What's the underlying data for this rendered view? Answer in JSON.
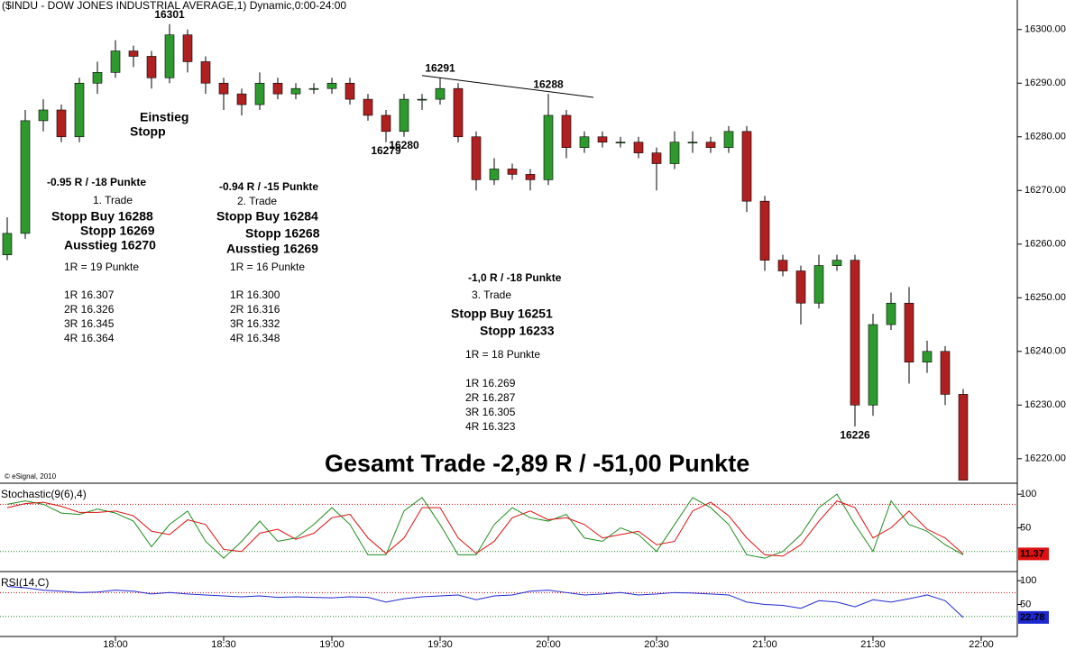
{
  "chart_data": [
    {
      "type": "candlestick",
      "title": "($INDU - DOW JONES INDUSTRIAL AVERAGE,1) Dynamic,0:00-24:00",
      "credit": "© eSignal, 2010",
      "x": [
        "17:30",
        "17:35",
        "17:40",
        "17:45",
        "17:50",
        "17:55",
        "18:00",
        "18:05",
        "18:10",
        "18:15",
        "18:20",
        "18:25",
        "18:30",
        "18:35",
        "18:40",
        "18:45",
        "18:50",
        "18:55",
        "19:00",
        "19:05",
        "19:10",
        "19:15",
        "19:20",
        "19:25",
        "19:30",
        "19:35",
        "19:40",
        "19:45",
        "19:50",
        "19:55",
        "20:00",
        "20:05",
        "20:10",
        "20:15",
        "20:20",
        "20:25",
        "20:30",
        "20:35",
        "20:40",
        "20:45",
        "20:50",
        "20:55",
        "21:00",
        "21:05",
        "21:10",
        "21:15",
        "21:20",
        "21:25",
        "21:30",
        "21:35",
        "21:40",
        "21:45",
        "21:50",
        "21:55"
      ],
      "open": [
        16258,
        16262,
        16283,
        16285,
        16280,
        16290,
        16292,
        16296,
        16295,
        16291,
        16299,
        16294,
        16290,
        16288,
        16286,
        16290,
        16288,
        16289,
        16289,
        16290,
        16287,
        16284,
        16281,
        16287,
        16287,
        16289,
        16280,
        16272,
        16274,
        16273,
        16272,
        16284,
        16278,
        16280,
        16279,
        16279,
        16277,
        16275,
        16279,
        16279,
        16278,
        16281,
        16268,
        16257,
        16255,
        16249,
        16256,
        16257,
        16230,
        16245,
        16249,
        16238,
        16240,
        16232
      ],
      "high": [
        16265,
        16285,
        16287,
        16286,
        16291,
        16294,
        16298,
        16297,
        16296,
        16301,
        16300,
        16295,
        16291,
        16289,
        16292,
        16291,
        16290,
        16290,
        16291,
        16291,
        16288,
        16285,
        16288,
        16288,
        16291,
        16290,
        16281,
        16276,
        16275,
        16274,
        16288,
        16285,
        16281,
        16281,
        16280,
        16280,
        16278,
        16281,
        16281,
        16280,
        16282,
        16282,
        16269,
        16258,
        16256,
        16258,
        16258,
        16258,
        16247,
        16251,
        16252,
        16242,
        16241,
        16233
      ],
      "low": [
        16257,
        16261,
        16281,
        16279,
        16279,
        16288,
        16291,
        16293,
        16289,
        16290,
        16292,
        16288,
        16285,
        16284,
        16285,
        16287,
        16287,
        16288,
        16288,
        16286,
        16283,
        16279,
        16280,
        16285,
        16286,
        16279,
        16270,
        16271,
        16272,
        16270,
        16271,
        16276,
        16277,
        16278,
        16278,
        16276,
        16270,
        16274,
        16277,
        16277,
        16277,
        16266,
        16255,
        16254,
        16245,
        16248,
        16255,
        16226,
        16228,
        16244,
        16234,
        16236,
        16230,
        16216
      ],
      "close": [
        16262,
        16283,
        16285,
        16280,
        16290,
        16292,
        16296,
        16295,
        16291,
        16299,
        16294,
        16290,
        16288,
        16286,
        16290,
        16288,
        16289,
        16289,
        16290,
        16287,
        16284,
        16281,
        16287,
        16287,
        16289,
        16280,
        16272,
        16274,
        16273,
        16272,
        16284,
        16278,
        16280,
        16279,
        16279,
        16277,
        16275,
        16279,
        16279,
        16278,
        16281,
        16268,
        16257,
        16255,
        16249,
        16256,
        16257,
        16230,
        16245,
        16249,
        16238,
        16240,
        16232,
        16216
      ],
      "up_color": "#2e9a2e",
      "down_color": "#b02020",
      "xlim": [
        "17:28",
        "22:10"
      ],
      "xticks": [
        "18:00",
        "18:30",
        "19:00",
        "19:30",
        "20:00",
        "20:30",
        "21:00",
        "21:30",
        "22:00"
      ],
      "ylim": [
        16215.6,
        16305.5
      ],
      "yticks": [
        {
          "value": 16220,
          "label": "16220.00"
        },
        {
          "value": 16230,
          "label": "16230.00"
        },
        {
          "value": 16240,
          "label": "16240.00"
        },
        {
          "value": 16250,
          "label": "16250.00"
        },
        {
          "value": 16260,
          "label": "16260.00"
        },
        {
          "value": 16270,
          "label": "16270.00"
        },
        {
          "value": 16280,
          "label": "16280.00"
        },
        {
          "value": 16290,
          "label": "16290.00"
        },
        {
          "value": 16300,
          "label": "16300.00"
        }
      ],
      "point_labels": [
        {
          "x": "18:15",
          "value": 16301,
          "position": "above",
          "color": "#000000"
        },
        {
          "x": "19:30",
          "value": 16291,
          "position": "above",
          "color": "#000000"
        },
        {
          "x": "20:00",
          "value": 16288,
          "position": "above",
          "color": "#000000"
        },
        {
          "x": "19:15",
          "value": 16279,
          "position": "below",
          "color": "#000000"
        },
        {
          "x": "19:20",
          "value": 16280,
          "position": "below",
          "color": "#000000"
        },
        {
          "x": "21:25",
          "value": 16226,
          "position": "below",
          "color": "#e6141e"
        }
      ],
      "trendline": [
        {
          "x": "19:30",
          "value": 16291
        },
        {
          "x": "20:05",
          "value": 16288
        }
      ],
      "annotations": [
        {
          "text": "Einstieg",
          "color": "#e6141e"
        },
        {
          "text": "Stopp",
          "color": "#e6141e"
        },
        {
          "text": "-0.95 R / -18 Punkte",
          "color": "#000000"
        },
        {
          "text": "1. Trade",
          "color": "#000000"
        },
        {
          "text": "Stopp Buy 16288",
          "color": "#1e8c1e"
        },
        {
          "text": "Stopp 16269",
          "color": "#1e8c1e"
        },
        {
          "text": "Ausstieg 16270",
          "color": "#1e8c1e"
        },
        {
          "text": "1R = 19 Punkte",
          "color": "#000000"
        },
        {
          "text": "1R 16.307",
          "color": "#000000"
        },
        {
          "text": "2R 16.326",
          "color": "#000000"
        },
        {
          "text": "3R 16.345",
          "color": "#000000"
        },
        {
          "text": "4R 16.364",
          "color": "#000000"
        },
        {
          "text": "-0.94 R / -15 Punkte",
          "color": "#000000"
        },
        {
          "text": "2. Trade",
          "color": "#000000"
        },
        {
          "text": "Stopp Buy 16284",
          "color": "#e619e6"
        },
        {
          "text": "Stopp 16268",
          "color": "#e619e6"
        },
        {
          "text": "Ausstieg 16269",
          "color": "#e619e6"
        },
        {
          "text": "1R = 16 Punkte",
          "color": "#000000"
        },
        {
          "text": "1R 16.300",
          "color": "#000000"
        },
        {
          "text": "2R 16.316",
          "color": "#000000"
        },
        {
          "text": "3R 16.332",
          "color": "#000000"
        },
        {
          "text": "4R 16.348",
          "color": "#000000"
        },
        {
          "text": "-1,0 R / -18 Punkte",
          "color": "#000000"
        },
        {
          "text": "3. Trade",
          "color": "#000000"
        },
        {
          "text": "Stopp Buy 16251",
          "color": "#1e28d2"
        },
        {
          "text": "Stopp 16233",
          "color": "#1e28d2"
        },
        {
          "text": "1R = 18 Punkte",
          "color": "#000000"
        },
        {
          "text": "1R 16.269",
          "color": "#000000"
        },
        {
          "text": "2R 16.287",
          "color": "#000000"
        },
        {
          "text": "3R 16.305",
          "color": "#000000"
        },
        {
          "text": "4R 16.323",
          "color": "#000000"
        },
        {
          "text": "Gesamt Trade -2,89 R / -51,00 Punkte",
          "color": "#000000"
        }
      ]
    },
    {
      "type": "line",
      "title": "Stochastic(9(6),4)",
      "title_color": "#1e8c1e",
      "x": [
        "17:30",
        "17:35",
        "17:40",
        "17:45",
        "17:50",
        "17:55",
        "18:00",
        "18:05",
        "18:10",
        "18:15",
        "18:20",
        "18:25",
        "18:30",
        "18:35",
        "18:40",
        "18:45",
        "18:50",
        "18:55",
        "19:00",
        "19:05",
        "19:10",
        "19:15",
        "19:20",
        "19:25",
        "19:30",
        "19:35",
        "19:40",
        "19:45",
        "19:50",
        "19:55",
        "20:00",
        "20:05",
        "20:10",
        "20:15",
        "20:20",
        "20:25",
        "20:30",
        "20:35",
        "20:40",
        "20:45",
        "20:50",
        "20:55",
        "21:00",
        "21:05",
        "21:10",
        "21:15",
        "21:20",
        "21:25",
        "21:30",
        "21:35",
        "21:40",
        "21:45",
        "21:50",
        "21:55"
      ],
      "series": [
        {
          "color": "#1e8c1e",
          "values": [
            85,
            90,
            85,
            72,
            70,
            78,
            72,
            60,
            22,
            55,
            75,
            30,
            5,
            30,
            60,
            30,
            35,
            55,
            80,
            55,
            10,
            10,
            75,
            95,
            55,
            10,
            10,
            55,
            80,
            65,
            60,
            70,
            35,
            30,
            50,
            40,
            15,
            55,
            95,
            80,
            55,
            10,
            5,
            15,
            40,
            80,
            100,
            55,
            15,
            90,
            55,
            45,
            25,
            10
          ]
        },
        {
          "color": "#dd1111",
          "values": [
            80,
            86,
            88,
            82,
            73,
            73,
            75,
            68,
            45,
            40,
            62,
            55,
            18,
            15,
            42,
            48,
            33,
            42,
            65,
            70,
            35,
            12,
            35,
            80,
            80,
            35,
            12,
            30,
            65,
            75,
            62,
            65,
            55,
            35,
            40,
            45,
            25,
            30,
            75,
            88,
            68,
            35,
            10,
            8,
            25,
            60,
            90,
            80,
            35,
            50,
            75,
            48,
            35,
            11.37
          ]
        }
      ],
      "current_series": 1,
      "xlim": [
        "17:28",
        "22:10"
      ],
      "ylim": [
        -13.5,
        114.9
      ],
      "yticks": [
        50,
        100
      ],
      "levels": [
        {
          "value": 85,
          "color": "#cc0000"
        },
        {
          "value": 15,
          "color": "#1e8c1e"
        }
      ]
    },
    {
      "type": "line",
      "title": "RSI(14,C)",
      "title_color": "#1e28d2",
      "x": [
        "17:30",
        "17:35",
        "17:40",
        "17:45",
        "17:50",
        "17:55",
        "18:00",
        "18:05",
        "18:10",
        "18:15",
        "18:20",
        "18:25",
        "18:30",
        "18:35",
        "18:40",
        "18:45",
        "18:50",
        "18:55",
        "19:00",
        "19:05",
        "19:10",
        "19:15",
        "19:20",
        "19:25",
        "19:30",
        "19:35",
        "19:40",
        "19:45",
        "19:50",
        "19:55",
        "20:00",
        "20:05",
        "20:10",
        "20:15",
        "20:20",
        "20:25",
        "20:30",
        "20:35",
        "20:40",
        "20:45",
        "20:50",
        "20:55",
        "21:00",
        "21:05",
        "21:10",
        "21:15",
        "21:20",
        "21:25",
        "21:30",
        "21:35",
        "21:40",
        "21:45",
        "21:50",
        "21:55"
      ],
      "series": [
        {
          "color": "#1e28d2",
          "values": [
            88,
            85,
            80,
            78,
            75,
            76,
            80,
            78,
            72,
            75,
            72,
            70,
            68,
            66,
            68,
            65,
            66,
            65,
            64,
            66,
            65,
            55,
            62,
            66,
            68,
            70,
            60,
            68,
            70,
            78,
            80,
            75,
            70,
            72,
            75,
            70,
            72,
            75,
            74,
            72,
            70,
            55,
            50,
            48,
            42,
            58,
            55,
            45,
            60,
            55,
            62,
            70,
            58,
            22.78
          ]
        }
      ],
      "current_series": 0,
      "xlim": [
        "17:28",
        "22:10"
      ],
      "ylim": [
        -15.4,
        117.3
      ],
      "yticks": [
        50,
        100
      ],
      "levels": [
        {
          "value": 75,
          "color": "#cc0000"
        },
        {
          "value": 25,
          "color": "#1e8c1e"
        }
      ]
    }
  ]
}
